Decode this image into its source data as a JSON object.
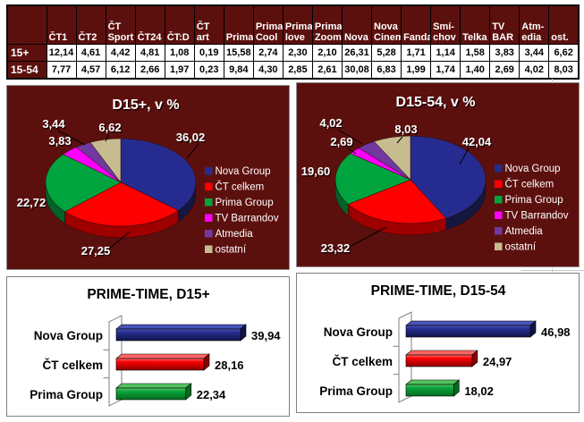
{
  "chart_data": [
    {
      "type": "table",
      "columns": [
        "ČT1",
        "ČT2",
        "ČT Sport",
        "ČT24",
        "ČT:D",
        "ČT art",
        "Prima",
        "Prima Cool",
        "Prima love",
        "Prima Zoom",
        "Nova",
        "Nova Cinema",
        "Fanda",
        "Smí-chov",
        "Telka",
        "TV BAR",
        "Atm-edia",
        "ost."
      ],
      "rows": [
        {
          "label": "15+",
          "values": [
            12.14,
            4.61,
            4.42,
            4.81,
            1.08,
            0.19,
            15.58,
            2.74,
            2.3,
            2.1,
            26.31,
            5.28,
            1.71,
            1.14,
            1.58,
            3.83,
            3.44,
            6.62
          ]
        },
        {
          "label": "15-54",
          "values": [
            7.77,
            4.57,
            6.12,
            2.66,
            1.97,
            0.23,
            9.84,
            4.3,
            2.85,
            2.61,
            30.08,
            6.83,
            1.99,
            1.74,
            1.4,
            2.69,
            4.02,
            8.03
          ]
        }
      ]
    },
    {
      "type": "pie",
      "title": "D15+, v %",
      "legend_position": "right",
      "labels": [
        "Nova Group",
        "ČT celkem",
        "Prima Group",
        "TV Barrandov",
        "Atmedia",
        "ostatní"
      ],
      "values": [
        36.02,
        27.25,
        22.72,
        3.83,
        3.44,
        6.62
      ]
    },
    {
      "type": "pie",
      "title": "D15-54, v %",
      "legend_position": "right",
      "labels": [
        "Nova Group",
        "ČT celkem",
        "Prima Group",
        "TV Barrandov",
        "Atmedia",
        "ostatní"
      ],
      "values": [
        42.04,
        23.32,
        19.6,
        2.69,
        4.02,
        8.03
      ]
    },
    {
      "type": "bar",
      "title": "PRIME-TIME, D15+",
      "orientation": "horizontal",
      "categories": [
        "Nova Group",
        "ČT celkem",
        "Prima Group"
      ],
      "values": [
        39.94,
        28.16,
        22.34
      ]
    },
    {
      "type": "bar",
      "title": "PRIME-TIME, D15-54",
      "orientation": "horizontal",
      "categories": [
        "Nova Group",
        "ČT celkem",
        "Prima Group"
      ],
      "values": [
        46.98,
        24.97,
        18.02
      ]
    }
  ],
  "colors": {
    "background_maroon": "#5c100e",
    "pie_top": [
      "#262c8f",
      "#fe0000",
      "#00a43e",
      "#ff00ff",
      "#7139a0",
      "#c7bb90"
    ],
    "pie_side": [
      "#14173f",
      "#9e0000",
      "#00632a",
      "#b000b0",
      "#45235f",
      "#8d8361"
    ],
    "bar_main": [
      "#252e8f",
      "#f80000",
      "#0ba33c"
    ],
    "bar_light": [
      "#4a53b8",
      "#ff6666",
      "#52c560"
    ],
    "bar_dark": [
      "#10144a",
      "#8e0000",
      "#056a1d"
    ],
    "text_light": "#ffffff",
    "text_dark": "#000000"
  }
}
